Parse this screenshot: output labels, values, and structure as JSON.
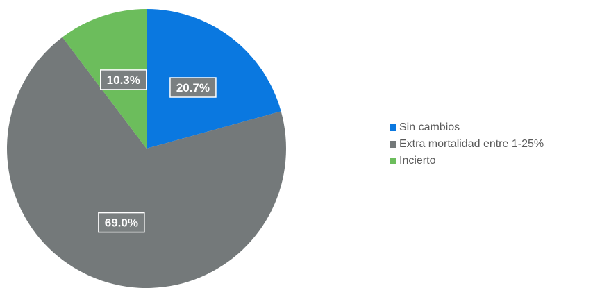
{
  "chart_data": {
    "type": "pie",
    "categories": [
      "Sin cambios",
      "Extra mortalidad entre 1-25%",
      "Incierto"
    ],
    "values": [
      20.7,
      69.0,
      10.3
    ],
    "data_labels": [
      "20.7%",
      "69.0%",
      "10.3%"
    ],
    "colors": [
      "#0a78e0",
      "#74797a",
      "#6cbd5c"
    ],
    "title": "",
    "legend_position": "right",
    "start_angle": "12 o'clock, clockwise"
  }
}
